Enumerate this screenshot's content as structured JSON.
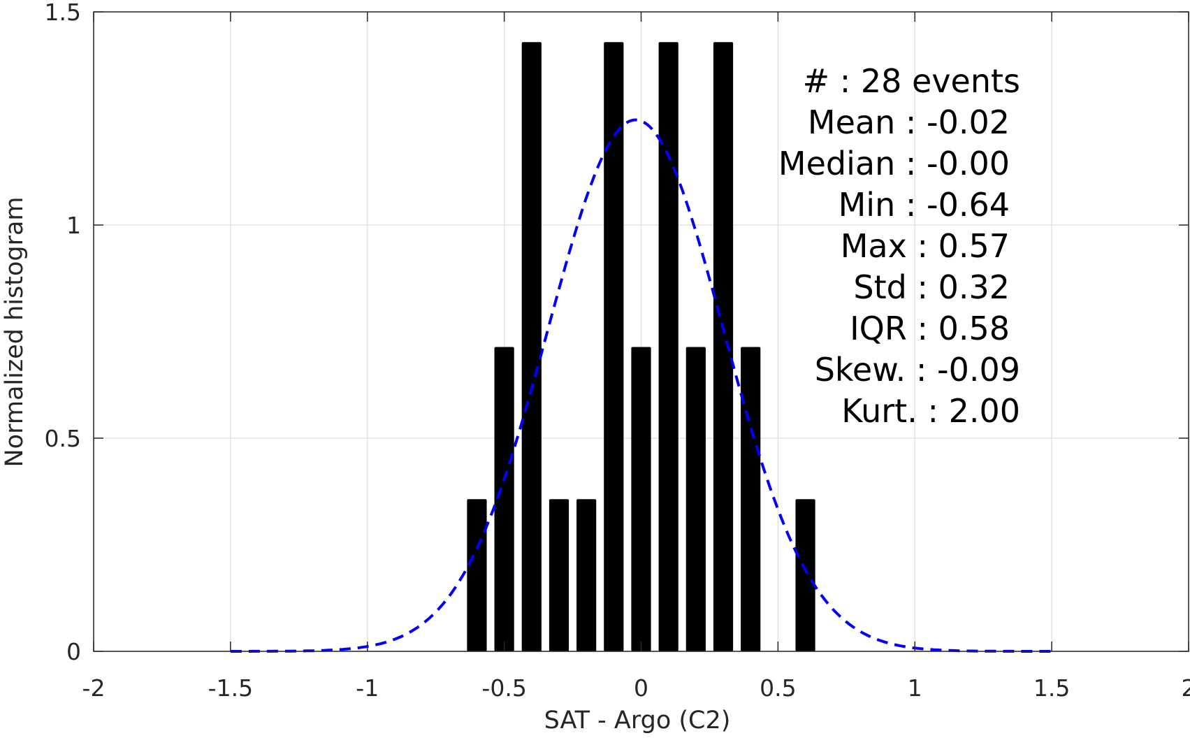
{
  "chart_data": {
    "type": "bar",
    "xlabel": "SAT - Argo (C2)",
    "ylabel": "Normalized histogram",
    "xlim": [
      -2,
      2
    ],
    "ylim": [
      0,
      1.5
    ],
    "grid": true,
    "x_ticks": [
      -2,
      -1.5,
      -1,
      -0.5,
      0,
      0.5,
      1,
      1.5,
      2
    ],
    "x_tick_labels": [
      "-2",
      "-1.5",
      "-1",
      "-0.5",
      "0",
      "0.5",
      "1",
      "1.5",
      "2"
    ],
    "y_ticks": [
      0,
      0.5,
      1,
      1.5
    ],
    "y_tick_labels": [
      "0",
      "0.5",
      "1",
      "1.5"
    ],
    "bin_width": 0.1,
    "bar_color": "#000000",
    "bars": [
      {
        "x": -0.6,
        "value": 0.357
      },
      {
        "x": -0.5,
        "value": 0.714
      },
      {
        "x": -0.4,
        "value": 1.429
      },
      {
        "x": -0.3,
        "value": 0.357
      },
      {
        "x": -0.2,
        "value": 0.357
      },
      {
        "x": -0.1,
        "value": 1.429
      },
      {
        "x": 0.0,
        "value": 0.714
      },
      {
        "x": 0.1,
        "value": 1.429
      },
      {
        "x": 0.2,
        "value": 0.714
      },
      {
        "x": 0.3,
        "value": 1.429
      },
      {
        "x": 0.4,
        "value": 0.714
      },
      {
        "x": 0.6,
        "value": 0.357
      }
    ],
    "fit_curve": {
      "style": "dashed",
      "color": "#0000ff",
      "mean": -0.02,
      "std": 0.32,
      "x_range": [
        -1.5,
        1.5
      ]
    },
    "stats_box": [
      "#  : 28 events",
      "Mean : -0.02",
      "Median : -0.00",
      "Min : -0.64",
      "Max : 0.57",
      "Std : 0.32",
      "IQR : 0.58",
      "Skew. : -0.09",
      "Kurt. : 2.00"
    ]
  }
}
